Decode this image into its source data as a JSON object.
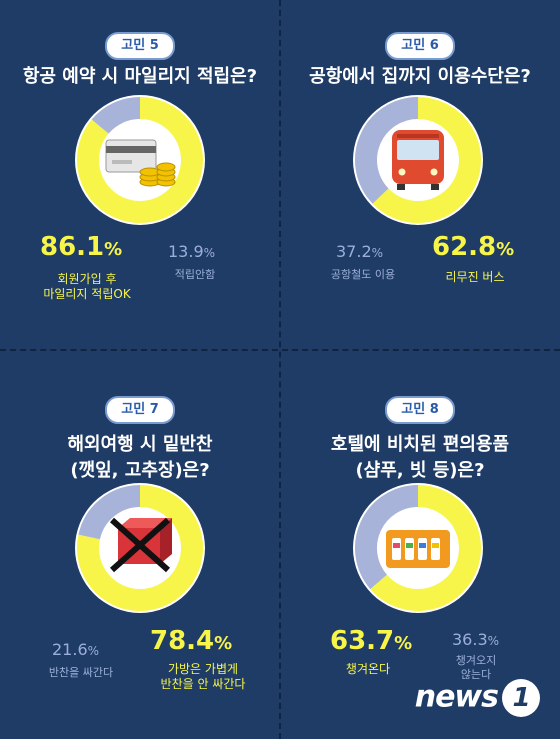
{
  "colors": {
    "background": "#1f3c66",
    "accent": "#f7f54a",
    "secondary": "#a7b3d8",
    "inner": "#ffffff"
  },
  "panels": [
    {
      "badge": "고민 5",
      "title": [
        "항공 예약 시 마일리지 적립은?"
      ],
      "icon": "credit-card-coins-icon",
      "big_value": "86.1",
      "big_label": [
        "회원가입 후",
        "마일리지 적립OK"
      ],
      "small_value": "13.9",
      "small_label": [
        "적립안함"
      ]
    },
    {
      "badge": "고민 6",
      "title": [
        "공항에서 집까지 이용수단은?"
      ],
      "icon": "bus-icon",
      "big_value": "62.8",
      "big_label": [
        "리무진 버스"
      ],
      "small_value": "37.2",
      "small_label": [
        "공항철도 이용"
      ]
    },
    {
      "badge": "고민 7",
      "title": [
        "해외여행 시 밑반찬",
        "(깻잎, 고추장)은?"
      ],
      "icon": "crossed-food-box-icon",
      "big_value": "78.4",
      "big_label": [
        "가방은 가볍게",
        "반찬을 안 싸간다"
      ],
      "small_value": "21.6",
      "small_label": [
        "반찬을 싸간다"
      ]
    },
    {
      "badge": "고민 8",
      "title": [
        "호텔에 비치된 편의용품",
        "(샴푸, 빗 등)은?"
      ],
      "icon": "toiletries-icon",
      "big_value": "63.7",
      "big_label": [
        "챙겨온다"
      ],
      "small_value": "36.3",
      "small_label": [
        "챙겨오지",
        "않는다"
      ]
    }
  ],
  "pct_symbol": "%",
  "logo": {
    "text": "news",
    "mark": "1"
  },
  "chart_data": [
    {
      "type": "pie",
      "title": "항공 예약 시 마일리지 적립은?",
      "categories": [
        "회원가입 후 마일리지 적립OK",
        "적립안함"
      ],
      "values": [
        86.1,
        13.9
      ]
    },
    {
      "type": "pie",
      "title": "공항에서 집까지 이용수단은?",
      "categories": [
        "리무진 버스",
        "공항철도 이용"
      ],
      "values": [
        62.8,
        37.2
      ]
    },
    {
      "type": "pie",
      "title": "해외여행 시 밑반찬 (깻잎, 고추장)은?",
      "categories": [
        "가방은 가볍게 반찬을 안 싸간다",
        "반찬을 싸간다"
      ],
      "values": [
        78.4,
        21.6
      ]
    },
    {
      "type": "pie",
      "title": "호텔에 비치된 편의용품 (샴푸, 빗 등)은?",
      "categories": [
        "챙겨온다",
        "챙겨오지 않는다"
      ],
      "values": [
        63.7,
        36.3
      ]
    }
  ]
}
